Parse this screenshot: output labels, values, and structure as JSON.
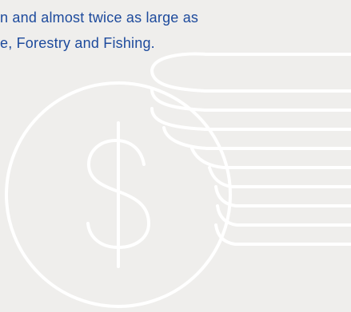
{
  "body_text": {
    "line_1": "n and almost twice as large as",
    "line_2": "e, Forestry and Fishing."
  },
  "illustration": {
    "icon": "coins-dollar-icon",
    "stroke_color": "#ffffff",
    "background_color": "#efeeec",
    "text_color": "#1d4a9c"
  }
}
